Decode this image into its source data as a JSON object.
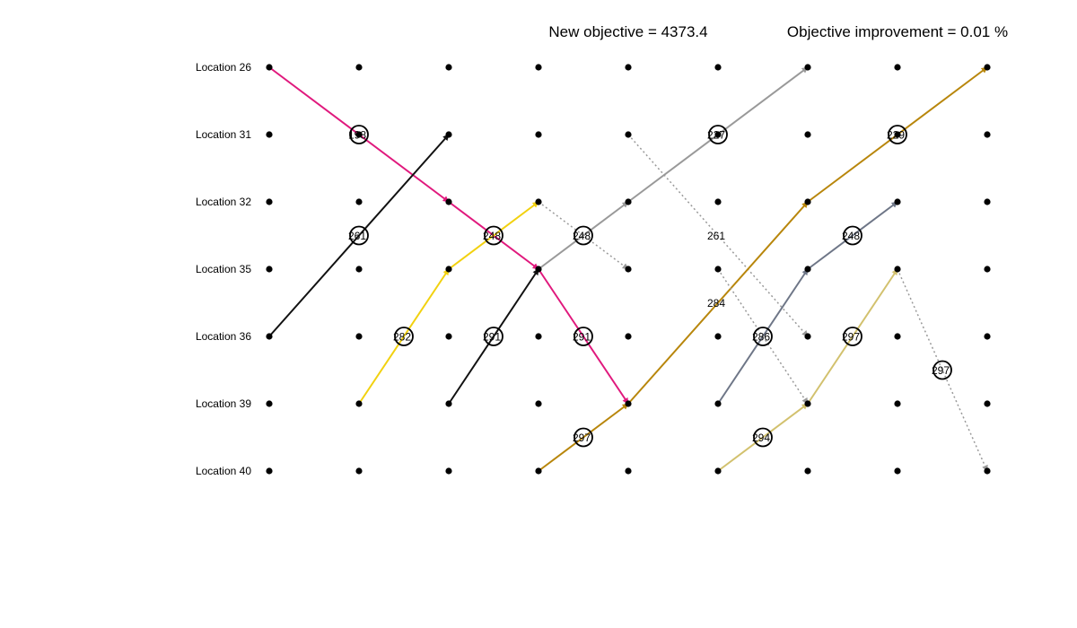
{
  "header": {
    "new_objective": "New objective = 4373.4",
    "improvement": "Objective improvement = 0.01 %"
  },
  "rows": [
    "Location 26",
    "Location 31",
    "Location 32",
    "Location 35",
    "Location 36",
    "Location 39",
    "Location 40"
  ],
  "column_count": 9,
  "colors": {
    "magenta": "#e0197d",
    "black": "#111111",
    "yellow": "#f2d10f",
    "gray": "#999999",
    "dark_gold": "#b8860b",
    "slate": "#6e7687",
    "khaki": "#d2c16e"
  },
  "routes": [
    {
      "color": "magenta",
      "style": "solid",
      "from": [
        0,
        0
      ],
      "to": [
        2,
        2
      ]
    },
    {
      "color": "magenta",
      "style": "solid",
      "from": [
        2,
        2
      ],
      "to": [
        3,
        3
      ]
    },
    {
      "color": "magenta",
      "style": "solid",
      "from": [
        3,
        3
      ],
      "to": [
        4,
        5
      ]
    },
    {
      "color": "black",
      "style": "solid",
      "from": [
        0,
        4
      ],
      "to": [
        2,
        1
      ]
    },
    {
      "color": "yellow",
      "style": "solid",
      "from": [
        1,
        5
      ],
      "to": [
        2,
        3
      ]
    },
    {
      "color": "yellow",
      "style": "solid",
      "from": [
        2,
        3
      ],
      "to": [
        3,
        2
      ]
    },
    {
      "color": "gray",
      "style": "dotted",
      "from": [
        3,
        2
      ],
      "to": [
        4,
        3
      ]
    },
    {
      "color": "black",
      "style": "solid",
      "from": [
        2,
        5
      ],
      "to": [
        3,
        3
      ]
    },
    {
      "color": "gray",
      "style": "solid",
      "from": [
        3,
        3
      ],
      "to": [
        4,
        2
      ]
    },
    {
      "color": "gray",
      "style": "solid",
      "from": [
        4,
        2
      ],
      "to": [
        6,
        0
      ]
    },
    {
      "color": "gray",
      "style": "dotted",
      "from": [
        4,
        1
      ],
      "to": [
        6,
        4
      ]
    },
    {
      "color": "dark_gold",
      "style": "solid",
      "from": [
        3,
        6
      ],
      "to": [
        4,
        5
      ]
    },
    {
      "color": "dark_gold",
      "style": "solid",
      "from": [
        4,
        5
      ],
      "to": [
        6,
        2
      ]
    },
    {
      "color": "dark_gold",
      "style": "solid",
      "from": [
        6,
        2
      ],
      "to": [
        8,
        0
      ]
    },
    {
      "color": "slate",
      "style": "solid",
      "from": [
        5,
        5
      ],
      "to": [
        6,
        3
      ]
    },
    {
      "color": "slate",
      "style": "solid",
      "from": [
        6,
        3
      ],
      "to": [
        7,
        2
      ]
    },
    {
      "color": "khaki",
      "style": "solid",
      "from": [
        5,
        6
      ],
      "to": [
        6,
        5
      ]
    },
    {
      "color": "khaki",
      "style": "solid",
      "from": [
        6,
        5
      ],
      "to": [
        7,
        3
      ]
    },
    {
      "color": "gray",
      "style": "dotted",
      "from": [
        5,
        3
      ],
      "to": [
        6,
        5
      ]
    },
    {
      "color": "gray",
      "style": "dotted",
      "from": [
        7,
        3
      ],
      "to": [
        8,
        6
      ]
    }
  ],
  "route_labels": [
    {
      "text": "198",
      "col": 1,
      "row": 1,
      "circle": true
    },
    {
      "text": "227",
      "col": 5,
      "row": 1,
      "circle": true
    },
    {
      "text": "229",
      "col": 7,
      "row": 1,
      "circle": true
    },
    {
      "text": "261",
      "col": 1,
      "row": 2.5,
      "circle": true
    },
    {
      "text": "248",
      "col": 2.5,
      "row": 2.5,
      "circle": true
    },
    {
      "text": "248",
      "col": 3.5,
      "row": 2.5,
      "circle": true
    },
    {
      "text": "261",
      "col": 5,
      "row": 2.5,
      "circle": false
    },
    {
      "text": "248",
      "col": 6.5,
      "row": 2.5,
      "circle": true
    },
    {
      "text": "284",
      "col": 5,
      "row": 3.5,
      "circle": false
    },
    {
      "text": "282",
      "col": 1.5,
      "row": 4,
      "circle": true
    },
    {
      "text": "291",
      "col": 2.5,
      "row": 4,
      "circle": true
    },
    {
      "text": "291",
      "col": 3.5,
      "row": 4,
      "circle": true
    },
    {
      "text": "286",
      "col": 5.5,
      "row": 4,
      "circle": true
    },
    {
      "text": "297",
      "col": 6.5,
      "row": 4,
      "circle": true
    },
    {
      "text": "297",
      "col": 7.5,
      "row": 4.5,
      "circle": true
    },
    {
      "text": "297",
      "col": 3.5,
      "row": 5.5,
      "circle": true
    },
    {
      "text": "294",
      "col": 5.5,
      "row": 5.5,
      "circle": true
    }
  ]
}
